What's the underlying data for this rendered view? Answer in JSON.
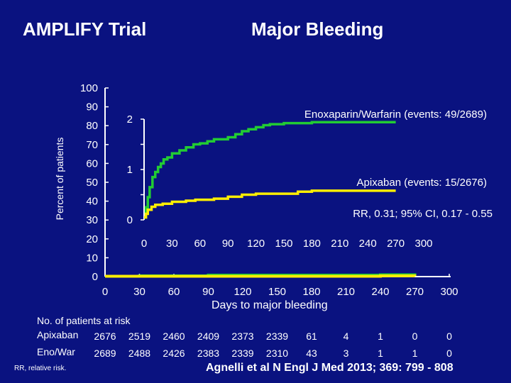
{
  "header": {
    "left_title": "AMPLIFY Trial",
    "right_title": "Major Bleeding"
  },
  "chart_data": {
    "type": "line",
    "xlabel": "Days to major bleeding",
    "ylabel": "Percent of patients",
    "xlim": [
      0,
      300
    ],
    "ylim": [
      0,
      100
    ],
    "x_ticks": [
      "0",
      "30",
      "60",
      "90",
      "120",
      "150",
      "180",
      "210",
      "240",
      "270",
      "300"
    ],
    "y_ticks": [
      "0",
      "10",
      "20",
      "30",
      "40",
      "50",
      "60",
      "70",
      "80",
      "90",
      "100"
    ],
    "series": [
      {
        "name": "Enoxaparin/Warfarin",
        "color": "#22cc33",
        "x": [
          0,
          30,
          90,
          240,
          270
        ],
        "y": [
          0.2,
          0.4,
          0.8,
          1.0,
          0.9
        ]
      },
      {
        "name": "Apixaban",
        "color": "#ffee00",
        "x": [
          0,
          240,
          270
        ],
        "y": [
          0.2,
          0.4,
          0.3
        ]
      }
    ],
    "inset": {
      "y_ticks": [
        "0",
        "1",
        "2"
      ],
      "ylim": [
        0,
        2
      ],
      "x_ticks": [
        "0",
        "30",
        "60",
        "90",
        "120",
        "150",
        "180",
        "210",
        "240",
        "270",
        "300"
      ],
      "xlim": [
        0,
        300
      ],
      "series": [
        {
          "name": "Enoxaparin/Warfarin",
          "color": "#22cc33",
          "x": [
            0,
            2,
            4,
            6,
            9,
            12,
            15,
            18,
            21,
            25,
            30,
            38,
            45,
            53,
            60,
            68,
            75,
            82,
            90,
            98,
            105,
            112,
            120,
            128,
            135,
            150,
            180,
            210,
            240,
            270
          ],
          "y": [
            0.05,
            0.25,
            0.45,
            0.65,
            0.85,
            0.95,
            1.05,
            1.12,
            1.2,
            1.24,
            1.32,
            1.38,
            1.44,
            1.5,
            1.52,
            1.56,
            1.6,
            1.6,
            1.64,
            1.7,
            1.76,
            1.8,
            1.84,
            1.88,
            1.9,
            1.92,
            1.94,
            1.94,
            1.94,
            1.94
          ]
        },
        {
          "name": "Apixaban",
          "color": "#ffee00",
          "x": [
            0,
            2,
            4,
            8,
            12,
            20,
            30,
            45,
            55,
            75,
            90,
            105,
            120,
            150,
            165,
            180,
            210,
            240,
            270
          ],
          "y": [
            0.05,
            0.12,
            0.2,
            0.26,
            0.3,
            0.32,
            0.36,
            0.38,
            0.4,
            0.42,
            0.46,
            0.5,
            0.52,
            0.52,
            0.56,
            0.58,
            0.58,
            0.58,
            0.58
          ]
        }
      ]
    },
    "annotations": {
      "warfarin_label": "Enoxaparin/Warfarin (events: 49/2689)",
      "apixaban_label": "Apixaban (events: 15/2676)",
      "rr_label": "RR, 0.31; 95% CI, 0.17 - 0.55"
    }
  },
  "risk_table": {
    "title": "No. of patients at risk",
    "rows": [
      {
        "label": "Apixaban",
        "values": [
          "2676",
          "2519",
          "2460",
          "2409",
          "2373",
          "2339",
          "61",
          "4",
          "1",
          "0",
          "0"
        ]
      },
      {
        "label": "Eno/War",
        "values": [
          "2689",
          "2488",
          "2426",
          "2383",
          "2339",
          "2310",
          "43",
          "3",
          "1",
          "1",
          "0"
        ]
      }
    ]
  },
  "footnote": "RR, relative risk.",
  "citation": "Agnelli et al N Engl J Med 2013; 369: 799 - 808"
}
